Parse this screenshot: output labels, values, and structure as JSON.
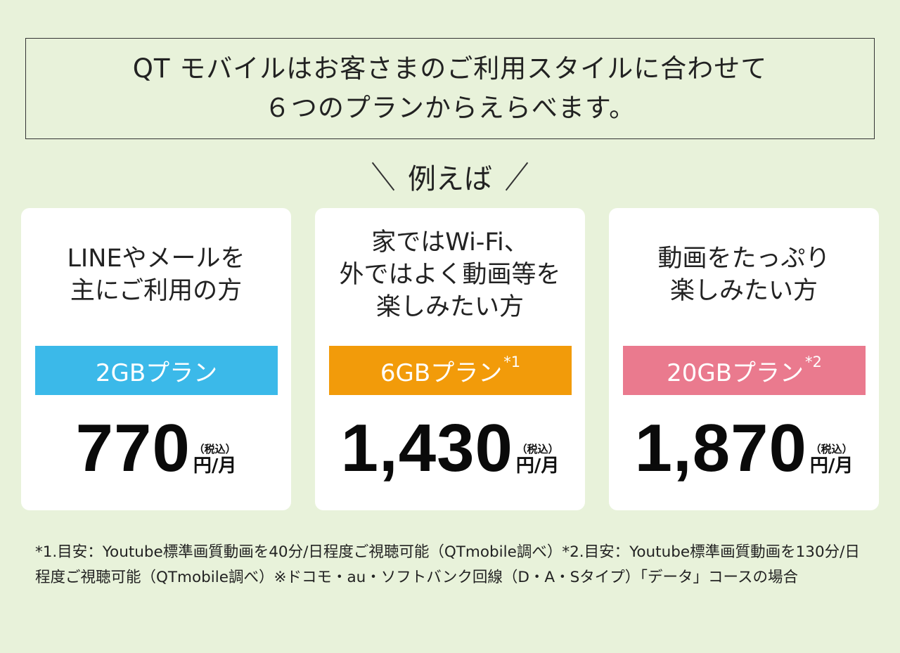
{
  "header": {
    "line1": "QT モバイルはお客さまのご利用スタイルに合わせて",
    "line2": "６つのプランからえらべます。"
  },
  "example_label": "例えば",
  "plans": [
    {
      "desc": [
        "LINEやメールを",
        "主にご利用の方"
      ],
      "name": "2GBプラン",
      "note": "",
      "price": "770",
      "tax": "（税込）",
      "unit": "円/月",
      "color": "#3bb9e9"
    },
    {
      "desc": [
        "家ではWi-Fi、",
        "外ではよく動画等を",
        "楽しみたい方"
      ],
      "name": "6GBプラン",
      "note": "*1",
      "price": "1,430",
      "tax": "（税込）",
      "unit": "円/月",
      "color": "#f29b0a"
    },
    {
      "desc": [
        "動画をたっぷり",
        "楽しみたい方"
      ],
      "name": "20GBプラン",
      "note": "*2",
      "price": "1,870",
      "tax": "（税込）",
      "unit": "円/月",
      "color": "#ea7a8e"
    }
  ],
  "footnote": "*1.目安：Youtube標準画質動画を40分/日程度ご視聴可能（QTmobile調べ）*2.目安：Youtube標準画質動画を130分/日程度ご視聴可能（QTmobile調べ）※ドコモ・au・ソフトバンク回線（D・A・Sタイプ）「データ」コースの場合",
  "colors": {
    "background": "#e8f2da",
    "card": "#ffffff"
  }
}
